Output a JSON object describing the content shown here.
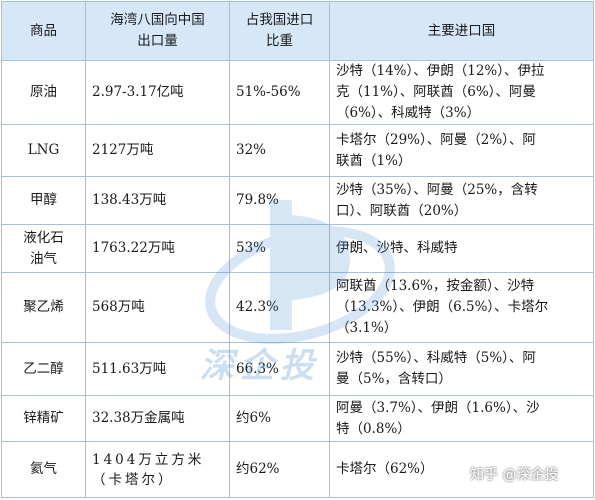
{
  "table": {
    "headers": {
      "product": "商品",
      "export": [
        "海湾八国向中国",
        "出口量"
      ],
      "share": [
        "占我国进口",
        "比重"
      ],
      "sources": "主要进口国"
    },
    "rows": [
      {
        "product": [
          "原油"
        ],
        "volume": [
          "2.97-3.17亿吨"
        ],
        "share": "51%-56%",
        "sources": [
          "沙特（14%）、伊朗（12%）、伊拉",
          "克（11%）、阿联酋（6%）、阿曼",
          "（6%）、科威特（3%）"
        ]
      },
      {
        "product": [
          "LNG"
        ],
        "volume": [
          "2127万吨"
        ],
        "share": "32%",
        "sources": [
          "卡塔尔（29%）、阿曼（2%）、阿",
          "联酋（1%）"
        ]
      },
      {
        "product": [
          "甲醇"
        ],
        "volume": [
          "138.43万吨"
        ],
        "share": "79.8%",
        "sources": [
          "沙特（35%）、阿曼（25%，含转",
          "口）、阿联酋（20%）"
        ]
      },
      {
        "product": [
          "液化石",
          "油气"
        ],
        "volume": [
          "1763.22万吨"
        ],
        "share": "53%",
        "sources": [
          "伊朗、沙特、科威特"
        ]
      },
      {
        "product": [
          "聚乙烯"
        ],
        "volume": [
          "568万吨"
        ],
        "share": "42.3%",
        "sources": [
          "阿联酋（13.6%，按金额）、沙特",
          "（13.3%）、伊朗（6.5%）、卡塔尔",
          "（3.1%）"
        ]
      },
      {
        "product": [
          "乙二醇"
        ],
        "volume": [
          "511.63万吨"
        ],
        "share": "66.3%",
        "sources": [
          "沙特（55%）、科威特（5%）、阿",
          "曼（5%，含转口）"
        ]
      },
      {
        "product": [
          "锌精矿"
        ],
        "volume": [
          "32.38万金属吨"
        ],
        "share": "约6%",
        "sources": [
          "阿曼（3.7%）、伊朗（1.6%）、沙",
          "特（0.8%）"
        ]
      },
      {
        "product": [
          "氦气"
        ],
        "volume": [
          "1404万立方米",
          "（卡塔尔）"
        ],
        "share": "约62%",
        "sources": [
          "卡塔尔（62%）"
        ]
      }
    ]
  },
  "watermark": {
    "text": "深企投",
    "color": "#6aa6d8"
  },
  "credit": "知乎 @深企投"
}
